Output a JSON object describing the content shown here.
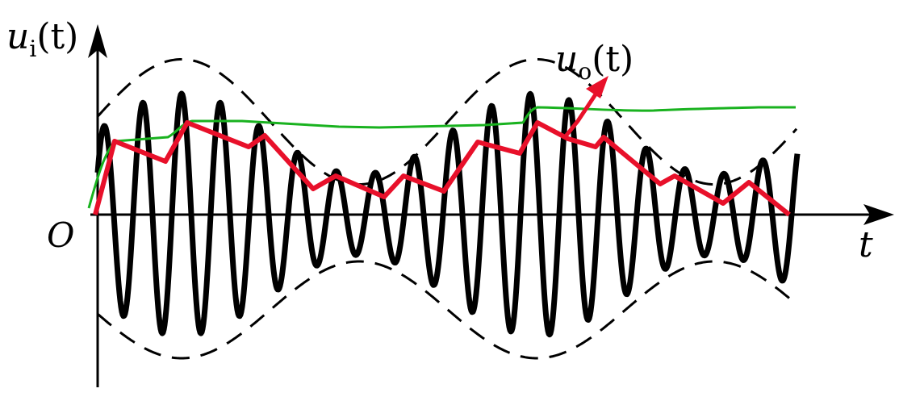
{
  "labels": {
    "y_axis_main": "u",
    "y_axis_sub": "i",
    "y_axis_arg": "(t)",
    "output_main": "u",
    "output_sub": "o",
    "output_arg": "(t)",
    "origin": "O",
    "x_axis": "t"
  },
  "colors": {
    "signal": "#000000",
    "envelope": "#000000",
    "detector_output": "#e8102a",
    "smoothed_output": "#19b21f",
    "axes": "#000000"
  }
}
